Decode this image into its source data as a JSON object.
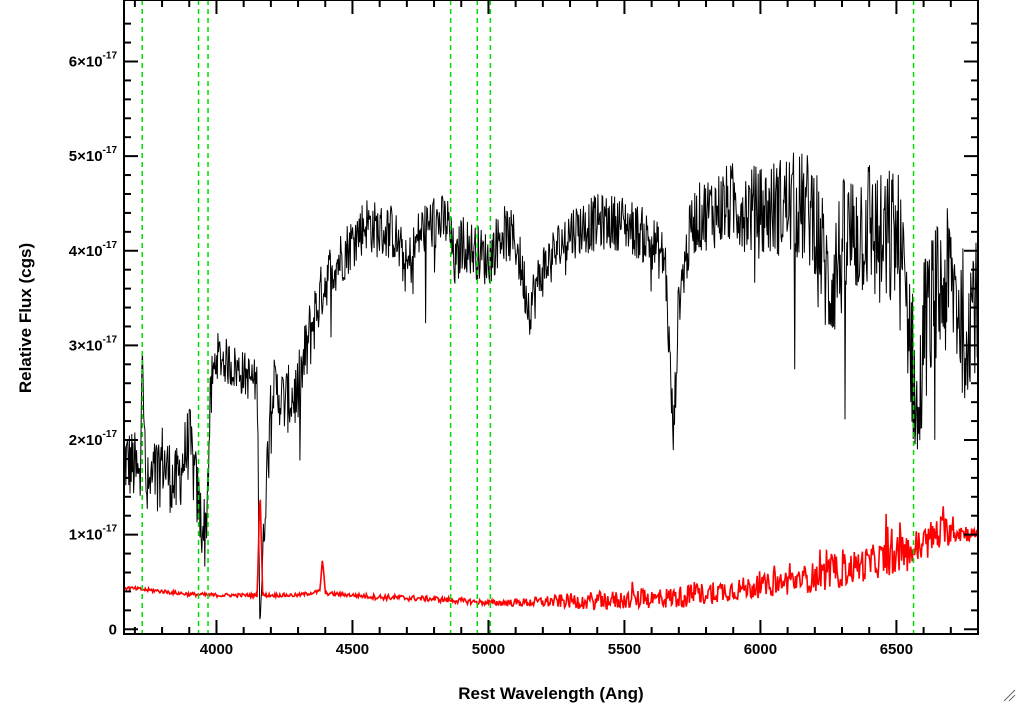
{
  "chart_data": {
    "type": "line",
    "title": "",
    "xlabel": "Rest Wavelength (Ang)",
    "ylabel": "Relative Flux (cgs)",
    "xlim": [
      3660,
      6800
    ],
    "ylim": [
      -0.05,
      6.65
    ],
    "y_scale_unit": "10^-17",
    "x_ticks": [
      4000,
      4500,
      5000,
      5500,
      6000,
      6500
    ],
    "x_tick_labels": [
      "4000",
      "4500",
      "5000",
      "5500",
      "6000",
      "6500"
    ],
    "y_ticks": [
      0,
      1,
      2,
      3,
      4,
      5,
      6
    ],
    "y_tick_labels": [
      {
        "mant": "0",
        "exp": ""
      },
      {
        "mant": "1×10",
        "exp": "-17"
      },
      {
        "mant": "2×10",
        "exp": "-17"
      },
      {
        "mant": "3×10",
        "exp": "-17"
      },
      {
        "mant": "4×10",
        "exp": "-17"
      },
      {
        "mant": "5×10",
        "exp": "-17"
      },
      {
        "mant": "6×10",
        "exp": "-17"
      }
    ],
    "vlines": [
      3727,
      3934,
      3969,
      4861,
      4959,
      5007,
      6563
    ],
    "grid": false,
    "series": [
      {
        "color": "#000000",
        "style": "solid",
        "x": [
          3660,
          3700,
          3720,
          3727,
          3740,
          3800,
          3850,
          3900,
          3940,
          3960,
          3980,
          4000,
          4050,
          4100,
          4150,
          4160,
          4200,
          4250,
          4300,
          4350,
          4390,
          4420,
          4450,
          4500,
          4550,
          4600,
          4650,
          4700,
          4750,
          4800,
          4850,
          4880,
          4900,
          4950,
          5000,
          5050,
          5100,
          5150,
          5200,
          5300,
          5400,
          5500,
          5600,
          5650,
          5680,
          5700,
          5750,
          5800,
          5900,
          6000,
          6100,
          6200,
          6250,
          6300,
          6350,
          6400,
          6450,
          6500,
          6550,
          6580,
          6600,
          6650,
          6700,
          6750,
          6780
        ],
        "y": [
          1.8,
          1.7,
          1.5,
          3.3,
          1.4,
          1.8,
          1.5,
          2.0,
          1.2,
          1.0,
          2.5,
          2.9,
          2.8,
          2.7,
          2.6,
          0.1,
          2.6,
          2.4,
          2.5,
          3.2,
          3.6,
          3.8,
          3.9,
          4.1,
          4.3,
          4.2,
          4.2,
          3.8,
          4.2,
          4.3,
          4.3,
          3.8,
          4.1,
          4.0,
          3.9,
          4.2,
          4.1,
          3.4,
          3.8,
          4.2,
          4.3,
          4.3,
          4.1,
          3.9,
          2.0,
          3.5,
          4.3,
          4.4,
          4.5,
          4.4,
          4.5,
          4.4,
          3.6,
          4.0,
          4.2,
          4.3,
          4.0,
          4.2,
          3.2,
          2.0,
          3.2,
          3.5,
          3.7,
          3.2,
          3.5
        ],
        "noise": [
          0.4,
          0.4,
          0.4,
          0.4,
          0.4,
          0.4,
          0.4,
          0.4,
          0.4,
          0.4,
          0.4,
          0.25,
          0.25,
          0.25,
          0.25,
          0.25,
          0.3,
          0.35,
          0.4,
          0.4,
          0.3,
          0.3,
          0.3,
          0.3,
          0.3,
          0.3,
          0.3,
          0.3,
          0.3,
          0.3,
          0.3,
          0.3,
          0.3,
          0.3,
          0.3,
          0.3,
          0.3,
          0.3,
          0.3,
          0.3,
          0.3,
          0.3,
          0.3,
          0.3,
          0.3,
          0.3,
          0.35,
          0.4,
          0.45,
          0.5,
          0.55,
          0.65,
          0.7,
          0.75,
          0.75,
          0.75,
          0.8,
          0.8,
          0.8,
          0.8,
          0.8,
          0.8,
          0.8,
          0.8,
          0.8
        ]
      },
      {
        "color": "#ff0000",
        "style": "solid",
        "x": [
          3660,
          3800,
          3900,
          4000,
          4100,
          4150,
          4160,
          4170,
          4200,
          4300,
          4380,
          4390,
          4400,
          4500,
          4600,
          4700,
          4800,
          4900,
          5000,
          5100,
          5200,
          5300,
          5400,
          5500,
          5600,
          5700,
          5800,
          5900,
          6000,
          6100,
          6200,
          6300,
          6400,
          6500,
          6550,
          6600,
          6650,
          6700,
          6750,
          6800
        ],
        "y": [
          0.44,
          0.4,
          0.37,
          0.36,
          0.36,
          0.36,
          1.5,
          0.36,
          0.36,
          0.36,
          0.4,
          0.75,
          0.38,
          0.36,
          0.34,
          0.33,
          0.32,
          0.3,
          0.28,
          0.28,
          0.29,
          0.3,
          0.3,
          0.31,
          0.32,
          0.34,
          0.38,
          0.42,
          0.45,
          0.5,
          0.55,
          0.62,
          0.7,
          0.78,
          0.82,
          0.9,
          1.0,
          1.05,
          1.02,
          1.0
        ],
        "noise": [
          0.02,
          0.02,
          0.02,
          0.02,
          0.02,
          0.02,
          0.02,
          0.02,
          0.02,
          0.02,
          0.02,
          0.02,
          0.02,
          0.02,
          0.03,
          0.03,
          0.03,
          0.03,
          0.03,
          0.04,
          0.06,
          0.08,
          0.1,
          0.1,
          0.1,
          0.12,
          0.12,
          0.12,
          0.12,
          0.14,
          0.16,
          0.18,
          0.18,
          0.2,
          0.2,
          0.2,
          0.2,
          0.15,
          0.1,
          0.05
        ]
      }
    ]
  }
}
